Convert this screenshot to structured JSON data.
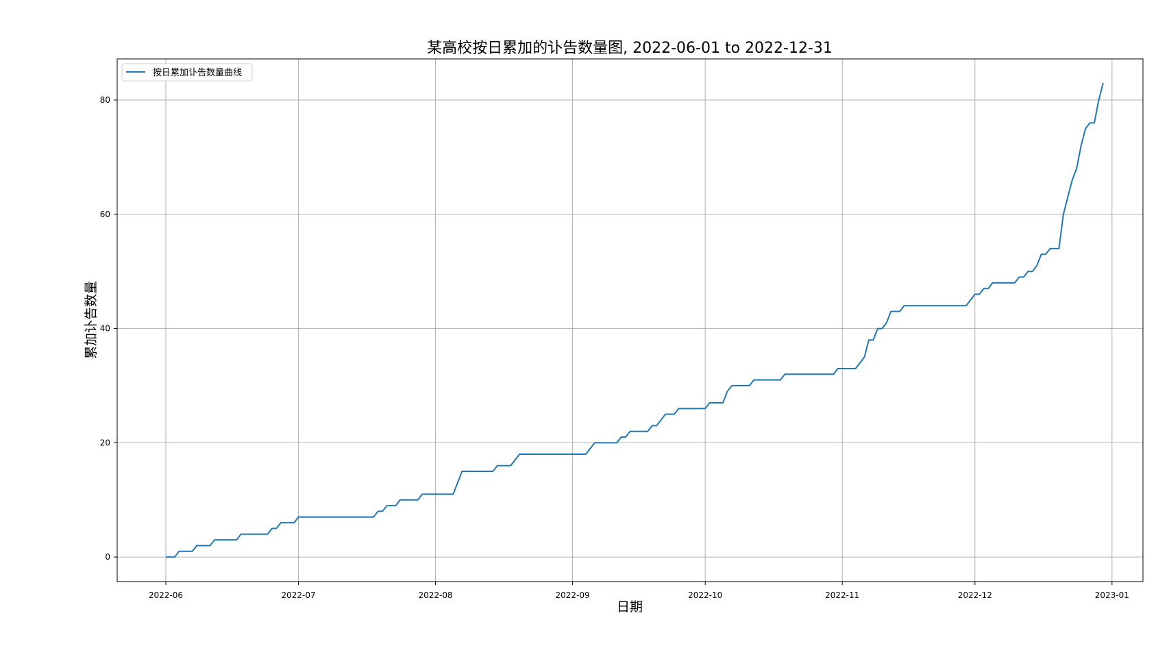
{
  "chart_data": {
    "type": "line",
    "title": "某高校按日累加的讣告数量图, 2022-06-01 to 2022-12-31",
    "xlabel": "日期",
    "ylabel": "累加讣告数量",
    "x_range": [
      "2022-05-21",
      "2023-01-08"
    ],
    "ylim": [
      -4.3,
      87.2
    ],
    "x_ticks": [
      "2022-06",
      "2022-07",
      "2022-08",
      "2022-09",
      "2022-10",
      "2022-11",
      "2022-12",
      "2023-01"
    ],
    "y_ticks": [
      0,
      20,
      40,
      60,
      80
    ],
    "grid": true,
    "legend_position": "top-left",
    "series": [
      {
        "name": "按日累加讣告数量曲线",
        "color": "#1f77b4",
        "points": [
          [
            "2022-06-01",
            0
          ],
          [
            "2022-06-03",
            0
          ],
          [
            "2022-06-04",
            1
          ],
          [
            "2022-06-07",
            1
          ],
          [
            "2022-06-08",
            2
          ],
          [
            "2022-06-11",
            2
          ],
          [
            "2022-06-12",
            3
          ],
          [
            "2022-06-17",
            3
          ],
          [
            "2022-06-18",
            4
          ],
          [
            "2022-06-24",
            4
          ],
          [
            "2022-06-25",
            5
          ],
          [
            "2022-06-26",
            5
          ],
          [
            "2022-06-27",
            6
          ],
          [
            "2022-06-30",
            6
          ],
          [
            "2022-07-01",
            7
          ],
          [
            "2022-07-18",
            7
          ],
          [
            "2022-07-19",
            8
          ],
          [
            "2022-07-20",
            8
          ],
          [
            "2022-07-21",
            9
          ],
          [
            "2022-07-23",
            9
          ],
          [
            "2022-07-24",
            10
          ],
          [
            "2022-07-28",
            10
          ],
          [
            "2022-07-29",
            11
          ],
          [
            "2022-08-05",
            11
          ],
          [
            "2022-08-07",
            15
          ],
          [
            "2022-08-14",
            15
          ],
          [
            "2022-08-15",
            16
          ],
          [
            "2022-08-18",
            16
          ],
          [
            "2022-08-20",
            18
          ],
          [
            "2022-09-04",
            18
          ],
          [
            "2022-09-06",
            20
          ],
          [
            "2022-09-11",
            20
          ],
          [
            "2022-09-12",
            21
          ],
          [
            "2022-09-13",
            21
          ],
          [
            "2022-09-14",
            22
          ],
          [
            "2022-09-18",
            22
          ],
          [
            "2022-09-19",
            23
          ],
          [
            "2022-09-20",
            23
          ],
          [
            "2022-09-22",
            25
          ],
          [
            "2022-09-24",
            25
          ],
          [
            "2022-09-25",
            26
          ],
          [
            "2022-10-01",
            26
          ],
          [
            "2022-10-02",
            27
          ],
          [
            "2022-10-05",
            27
          ],
          [
            "2022-10-06",
            29
          ],
          [
            "2022-10-07",
            30
          ],
          [
            "2022-10-11",
            30
          ],
          [
            "2022-10-12",
            31
          ],
          [
            "2022-10-18",
            31
          ],
          [
            "2022-10-19",
            32
          ],
          [
            "2022-10-30",
            32
          ],
          [
            "2022-10-31",
            33
          ],
          [
            "2022-11-04",
            33
          ],
          [
            "2022-11-06",
            35
          ],
          [
            "2022-11-07",
            38
          ],
          [
            "2022-11-08",
            38
          ],
          [
            "2022-11-09",
            40
          ],
          [
            "2022-11-10",
            40
          ],
          [
            "2022-11-11",
            41
          ],
          [
            "2022-11-12",
            43
          ],
          [
            "2022-11-14",
            43
          ],
          [
            "2022-11-15",
            44
          ],
          [
            "2022-11-29",
            44
          ],
          [
            "2022-11-30",
            45
          ],
          [
            "2022-12-01",
            46
          ],
          [
            "2022-12-02",
            46
          ],
          [
            "2022-12-03",
            47
          ],
          [
            "2022-12-04",
            47
          ],
          [
            "2022-12-05",
            48
          ],
          [
            "2022-12-10",
            48
          ],
          [
            "2022-12-11",
            49
          ],
          [
            "2022-12-12",
            49
          ],
          [
            "2022-12-13",
            50
          ],
          [
            "2022-12-14",
            50
          ],
          [
            "2022-12-15",
            51
          ],
          [
            "2022-12-16",
            53
          ],
          [
            "2022-12-17",
            53
          ],
          [
            "2022-12-18",
            54
          ],
          [
            "2022-12-20",
            54
          ],
          [
            "2022-12-21",
            60
          ],
          [
            "2022-12-22",
            63
          ],
          [
            "2022-12-23",
            66
          ],
          [
            "2022-12-24",
            68
          ],
          [
            "2022-12-25",
            72
          ],
          [
            "2022-12-26",
            75
          ],
          [
            "2022-12-27",
            76
          ],
          [
            "2022-12-28",
            76
          ],
          [
            "2022-12-29",
            80
          ],
          [
            "2022-12-30",
            83
          ]
        ]
      }
    ]
  }
}
